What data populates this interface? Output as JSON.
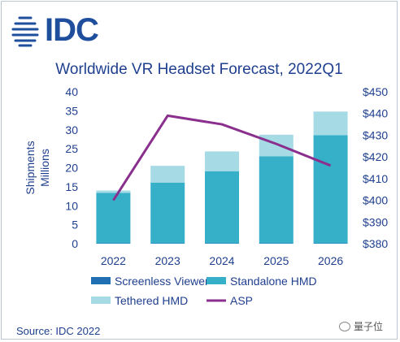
{
  "logo": {
    "text": "IDC"
  },
  "source": "Source: IDC 2022",
  "watermark": "量子位",
  "colors": {
    "screenless": "#1f6fb2",
    "standalone": "#36b0c9",
    "tethered": "#a6dbe6",
    "asp": "#8a2f8e",
    "text": "#1f3f8f"
  },
  "chart_data": {
    "type": "bar",
    "stacked": true,
    "title": "Worldwide VR Headset Forecast, 2022Q1",
    "ylabel": [
      "Shipments",
      "Millions"
    ],
    "ylim": [
      0,
      40
    ],
    "yticks": [
      0,
      5,
      10,
      15,
      20,
      25,
      30,
      35,
      40
    ],
    "y2lim": [
      380,
      450
    ],
    "y2ticks": [
      "$380",
      "$390",
      "$400",
      "$410",
      "$420",
      "$430",
      "$440",
      "$450"
    ],
    "y2tick_values": [
      380,
      390,
      400,
      410,
      420,
      430,
      440,
      450
    ],
    "categories": [
      "2022",
      "2023",
      "2024",
      "2025",
      "2026"
    ],
    "series": [
      {
        "name": "Screenless Viewer",
        "color": "#1f6fb2",
        "values": [
          0.1,
          0.1,
          0.1,
          0.1,
          0.1
        ]
      },
      {
        "name": "Standalone HMD",
        "color": "#36b0c9",
        "values": [
          13.3,
          16.0,
          19.0,
          22.9,
          28.5
        ]
      },
      {
        "name": "Tethered HMD",
        "color": "#a6dbe6",
        "values": [
          0.6,
          4.4,
          5.2,
          5.7,
          6.2
        ]
      }
    ],
    "line_series": {
      "name": "ASP",
      "color": "#8a2f8e",
      "axis": "right",
      "values": [
        400,
        439,
        435,
        426,
        416
      ]
    },
    "legend": {
      "placement": "bottom",
      "items": [
        "Screenless Viewer",
        "Standalone HMD",
        "Tethered HMD",
        "ASP"
      ]
    },
    "grid": false
  }
}
